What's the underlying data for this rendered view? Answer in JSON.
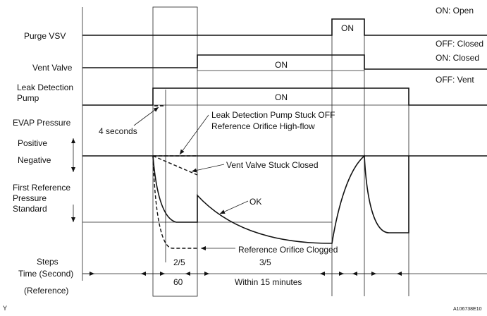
{
  "signals": {
    "purge_vsv": "Purge VSV",
    "vent_valve": "Vent Valve",
    "pump_line1": "Leak Detection",
    "pump_line2": "Pump",
    "evap_pressure": "EVAP Pressure",
    "positive": "Positive",
    "negative": "Negative",
    "first_ref_1": "First Reference",
    "first_ref_2": "Pressure",
    "first_ref_3": "Standard"
  },
  "state_legend": {
    "purge_on": "ON: Open",
    "purge_off": "OFF: Closed",
    "vent_on": "ON: Closed",
    "vent_off": "OFF: Vent"
  },
  "on_labels": {
    "purge": "ON",
    "vent": "ON",
    "pump": "ON"
  },
  "annotations": {
    "four_seconds": "4 seconds",
    "stuck_off_1": "Leak Detection Pump Stuck OFF",
    "stuck_off_2": "Reference Orifice High-flow",
    "vent_stuck": "Vent Valve Stuck Closed",
    "ok": "OK",
    "clogged": "Reference Orifice Clogged"
  },
  "timeline": {
    "steps": "Steps",
    "time": "Time (Second)",
    "reference": "(Reference)",
    "step_2": "2/5",
    "step_3": "3/5",
    "time_60": "60",
    "within": "Within 15 minutes"
  },
  "footer": {
    "left": "Y",
    "figure_id": "A106738E10"
  }
}
